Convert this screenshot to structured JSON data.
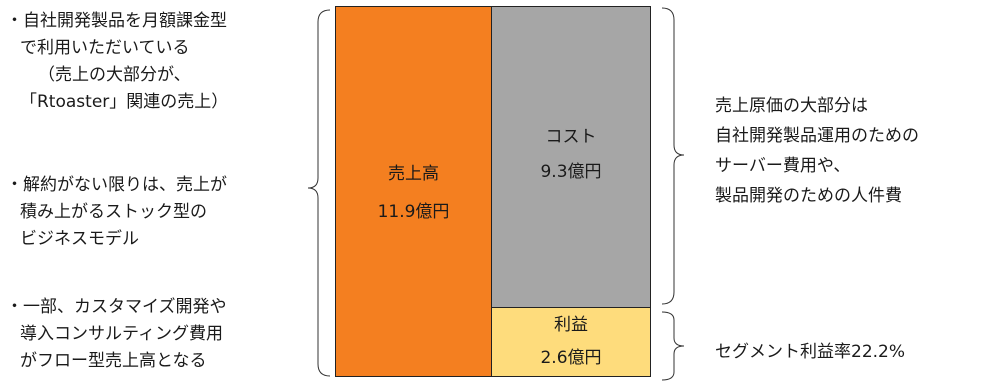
{
  "left_notes": [
    {
      "lines": [
        "・自社開発製品を月額課金型",
        "で利用いただいている",
        "（売上の大部分が、",
        "「Rtoaster」関連の売上）"
      ]
    },
    {
      "lines": [
        "・解約がない限りは、売上が",
        "積み上がるストック型の",
        "ビジネスモデル"
      ]
    },
    {
      "lines": [
        "・一部、カスタマイズ開発や",
        "導入コンサルティング費用",
        "がフロー型売上高となる"
      ]
    }
  ],
  "sales": {
    "label": "売上高",
    "value": "11.9億円"
  },
  "cost": {
    "label": "コスト",
    "value": "9.3億円"
  },
  "profit": {
    "label": "利益",
    "value": "2.6億円"
  },
  "right_notes": {
    "cost_lines": [
      "売上原価の大部分は",
      "自社開発製品運用のための",
      "サーバー費用や、",
      "製品開発のための人件費"
    ],
    "profit_line": "セグメント利益率22.2%"
  },
  "colors": {
    "sales": "#f47f20",
    "cost": "#a6a6a6",
    "profit": "#fedc7c"
  }
}
